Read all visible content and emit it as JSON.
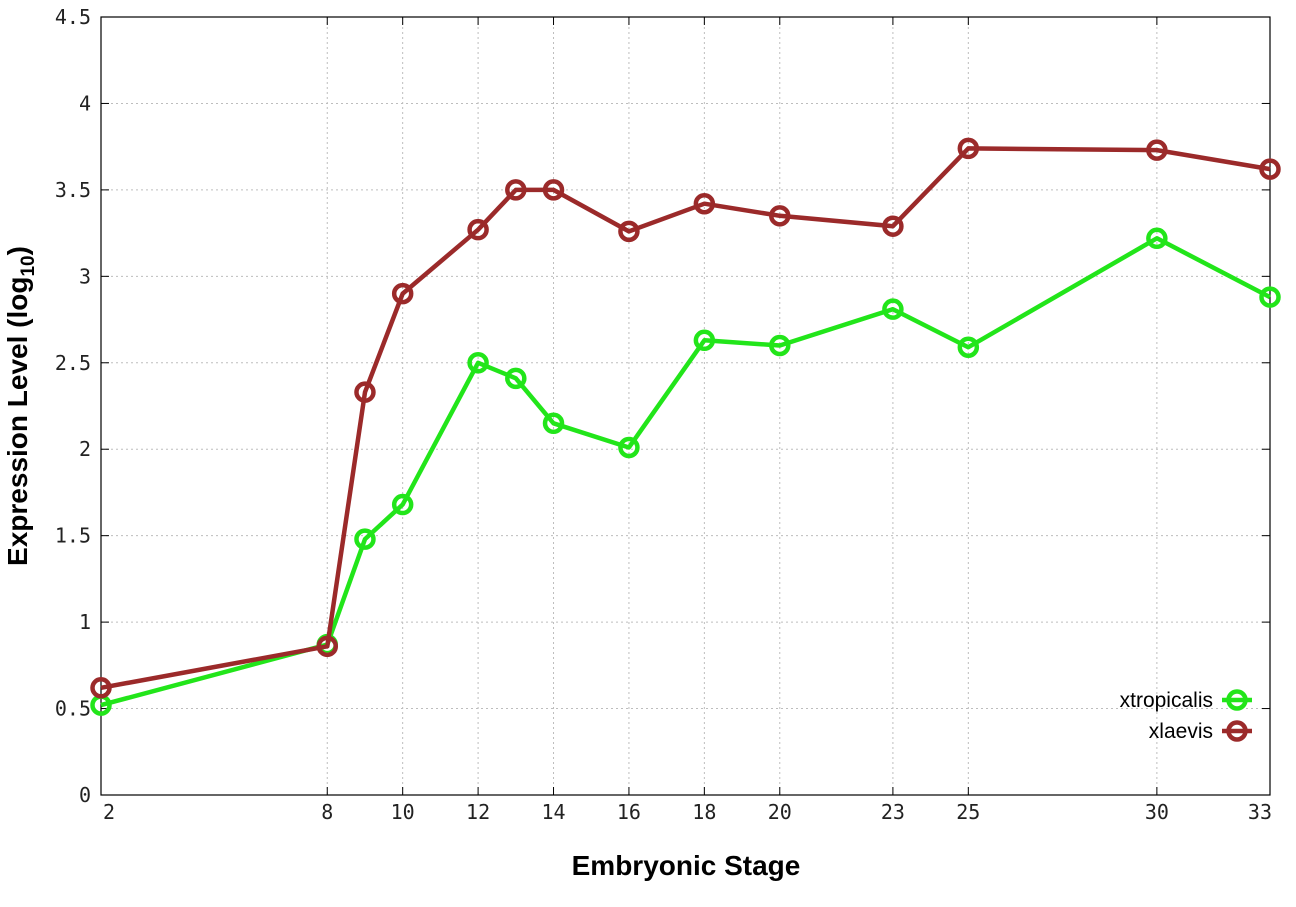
{
  "chart_data": {
    "type": "line",
    "xlabel": "Embryonic Stage",
    "ylabel_main": "Expression Level (log",
    "ylabel_sub": "10",
    "ylabel_close": ")",
    "x_ticks": [
      2,
      8,
      10,
      12,
      14,
      16,
      18,
      20,
      23,
      25,
      30,
      33
    ],
    "y_ticks": [
      "0",
      "0.5",
      "1",
      "1.5",
      "2",
      "2.5",
      "3",
      "3.5",
      "4",
      "4.5"
    ],
    "xlim": [
      2,
      33
    ],
    "ylim": [
      0,
      4.5
    ],
    "grid": true,
    "legend_position": "bottom-right",
    "x": [
      2,
      8,
      9,
      10,
      12,
      13,
      14,
      16,
      18,
      20,
      23,
      25,
      30,
      33
    ],
    "series": [
      {
        "name": "xtropicalis",
        "color": "#22e51a",
        "values": [
          0.52,
          0.87,
          1.48,
          1.68,
          2.5,
          2.41,
          2.15,
          2.01,
          2.63,
          2.6,
          2.81,
          2.59,
          3.22,
          2.88
        ]
      },
      {
        "name": "xlaevis",
        "color": "#9b2a2a",
        "values": [
          0.62,
          0.86,
          2.33,
          2.9,
          3.27,
          3.5,
          3.5,
          3.26,
          3.42,
          3.35,
          3.29,
          3.74,
          3.73,
          3.62
        ]
      }
    ]
  }
}
